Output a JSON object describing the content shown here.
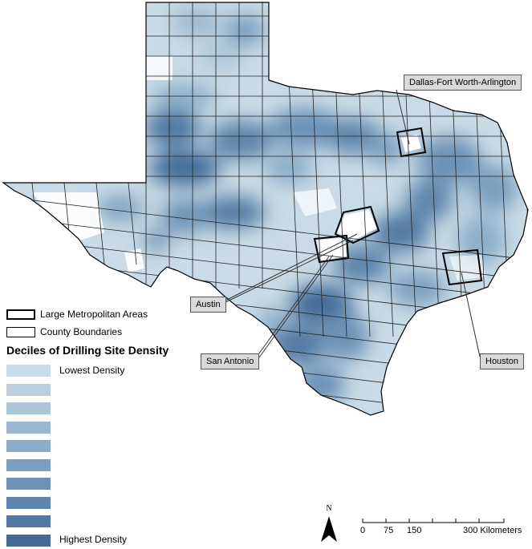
{
  "map": {
    "callouts": [
      {
        "id": "dfw",
        "label": "Dallas-Fort Worth-Arlington"
      },
      {
        "id": "austin",
        "label": "Austin"
      },
      {
        "id": "sanantonio",
        "label": "San Antonio"
      },
      {
        "id": "houston",
        "label": "Houston"
      }
    ],
    "colors": {
      "decile_ramp": [
        "#c8dbe6",
        "#bad0de",
        "#aac5d7",
        "#9bb8d0",
        "#8badc9",
        "#7c9fbf",
        "#6d92b6",
        "#5f85ac",
        "#5179a3",
        "#426b98"
      ],
      "county_border": "#000000",
      "background": "#ffffff"
    }
  },
  "legend": {
    "metro_label": "Large Metropolitan Areas",
    "county_label": "County Boundaries",
    "title": "Deciles of Drilling Site Density",
    "lowest_label": "Lowest Density",
    "highest_label": "Highest Density"
  },
  "scale_bar": {
    "ticks": [
      "0",
      "75",
      "150",
      "300 Kilometers"
    ]
  },
  "north_arrow": {
    "label": "N"
  }
}
